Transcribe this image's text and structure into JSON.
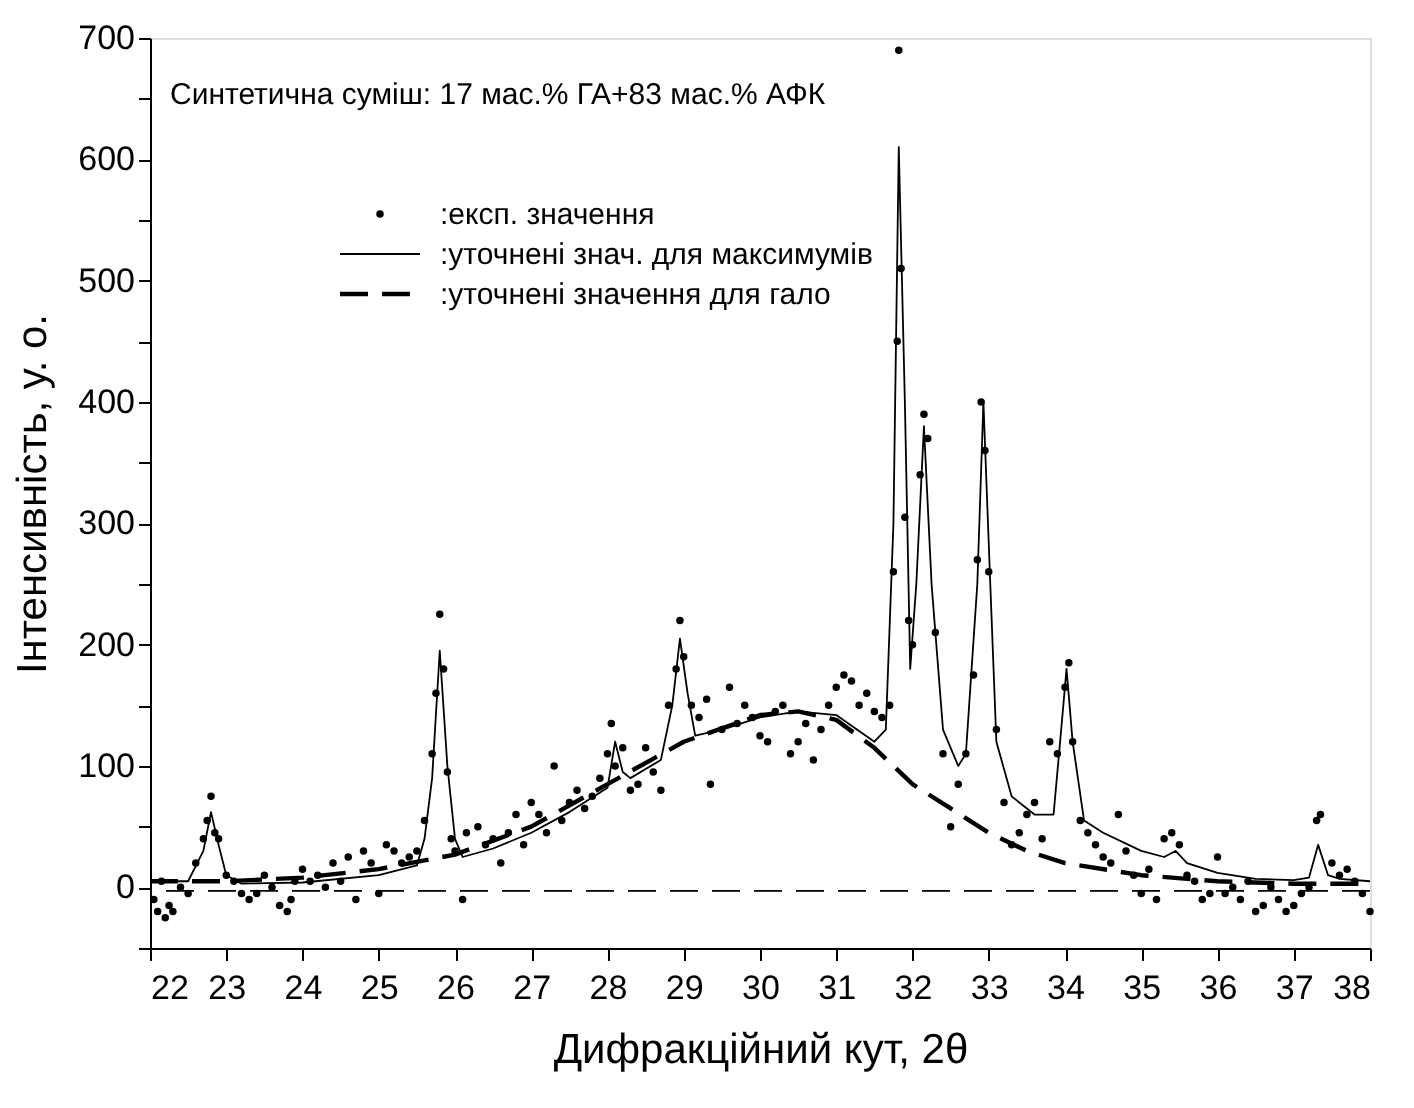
{
  "chart_data": {
    "type": "scatter",
    "xlabel": "Дифракційний кут, 2θ",
    "ylabel": "Інтенсивність, у. о.",
    "annotations": [
      "Синтетична суміш: 17 мас.% ГА+83 мас.% АФК"
    ],
    "xlim": [
      22,
      38
    ],
    "xticks": [
      22,
      23,
      24,
      25,
      26,
      27,
      28,
      29,
      30,
      31,
      32,
      33,
      34,
      35,
      36,
      37,
      38
    ],
    "ylim": [
      -50,
      700
    ],
    "yticks": [
      {
        "value": -50,
        "label": null
      },
      0,
      {
        "value": 50,
        "label": null
      },
      100,
      {
        "value": 150,
        "label": null
      },
      200,
      {
        "value": 250,
        "label": null
      },
      300,
      {
        "value": 350,
        "label": null
      },
      400,
      {
        "value": 450,
        "label": null
      },
      500,
      {
        "value": 550,
        "label": null
      },
      600,
      {
        "value": 650,
        "label": null
      },
      700
    ],
    "grid": false,
    "legend": "top left",
    "ref_lines": [
      {
        "axis": "y",
        "value": -3,
        "line_style": "dashed",
        "color": "#000000"
      }
    ],
    "series": [
      {
        "name": ":експ. значення",
        "type": "scatter",
        "marker": "circle",
        "color": "#000000",
        "x": [
          22.05,
          22.1,
          22.15,
          22.2,
          22.25,
          22.3,
          22.4,
          22.5,
          22.6,
          22.7,
          22.75,
          22.8,
          22.85,
          22.9,
          23.0,
          23.1,
          23.2,
          23.3,
          23.4,
          23.5,
          23.6,
          23.7,
          23.8,
          23.85,
          23.9,
          24.0,
          24.1,
          24.2,
          24.3,
          24.4,
          24.5,
          24.6,
          24.7,
          24.8,
          24.9,
          25.0,
          25.1,
          25.2,
          25.3,
          25.4,
          25.5,
          25.6,
          25.7,
          25.75,
          25.8,
          25.85,
          25.9,
          25.95,
          26.0,
          26.1,
          26.15,
          26.3,
          26.4,
          26.5,
          26.6,
          26.7,
          26.8,
          26.9,
          27.0,
          27.1,
          27.2,
          27.3,
          27.4,
          27.5,
          27.6,
          27.7,
          27.8,
          27.9,
          28.0,
          28.05,
          28.1,
          28.2,
          28.3,
          28.4,
          28.5,
          28.6,
          28.7,
          28.8,
          28.9,
          28.95,
          29.0,
          29.1,
          29.2,
          29.3,
          29.35,
          29.5,
          29.6,
          29.7,
          29.8,
          29.9,
          30.0,
          30.1,
          30.2,
          30.3,
          30.4,
          30.5,
          30.6,
          30.7,
          30.8,
          30.9,
          31.0,
          31.1,
          31.2,
          31.3,
          31.4,
          31.5,
          31.6,
          31.7,
          31.75,
          31.8,
          31.82,
          31.85,
          31.9,
          31.95,
          32.0,
          32.1,
          32.15,
          32.2,
          32.3,
          32.4,
          32.5,
          32.6,
          32.7,
          32.8,
          32.85,
          32.9,
          32.95,
          33.0,
          33.1,
          33.2,
          33.3,
          33.4,
          33.5,
          33.6,
          33.7,
          33.8,
          33.9,
          34.0,
          34.05,
          34.1,
          34.2,
          34.3,
          34.4,
          34.5,
          34.6,
          34.7,
          34.8,
          34.9,
          35.0,
          35.1,
          35.2,
          35.3,
          35.4,
          35.5,
          35.6,
          35.7,
          35.8,
          35.9,
          36.0,
          36.1,
          36.2,
          36.3,
          36.4,
          36.5,
          36.6,
          36.7,
          36.8,
          36.9,
          37.0,
          37.1,
          37.2,
          37.3,
          37.35,
          37.5,
          37.6,
          37.7,
          37.8,
          37.9,
          38.0
        ],
        "values": [
          -10,
          -20,
          5,
          -25,
          -15,
          -20,
          0,
          -5,
          20,
          40,
          55,
          75,
          45,
          40,
          10,
          5,
          -5,
          -10,
          -5,
          10,
          0,
          -15,
          -20,
          -10,
          5,
          15,
          5,
          10,
          0,
          20,
          5,
          25,
          -10,
          30,
          20,
          -5,
          35,
          30,
          20,
          25,
          30,
          55,
          110,
          160,
          225,
          180,
          95,
          40,
          30,
          -10,
          45,
          50,
          35,
          40,
          20,
          45,
          60,
          35,
          70,
          60,
          45,
          100,
          55,
          70,
          80,
          65,
          75,
          90,
          110,
          135,
          100,
          115,
          80,
          85,
          115,
          95,
          80,
          150,
          180,
          220,
          190,
          150,
          140,
          155,
          85,
          130,
          165,
          135,
          150,
          140,
          125,
          120,
          145,
          150,
          110,
          120,
          135,
          105,
          130,
          150,
          165,
          175,
          170,
          150,
          160,
          145,
          140,
          150,
          260,
          450,
          690,
          510,
          305,
          220,
          200,
          340,
          390,
          370,
          210,
          110,
          50,
          85,
          110,
          175,
          270,
          400,
          360,
          260,
          130,
          70,
          35,
          45,
          60,
          70,
          40,
          120,
          110,
          165,
          185,
          120,
          55,
          45,
          35,
          25,
          20,
          60,
          30,
          10,
          -5,
          15,
          -10,
          40,
          45,
          35,
          10,
          5,
          -10,
          -5,
          25,
          -5,
          0,
          -10,
          5,
          -20,
          -15,
          0,
          -10,
          -20,
          -15,
          -5,
          0,
          55,
          60,
          20,
          10,
          15,
          5,
          -5,
          -20
        ]
      },
      {
        "name": ":уточнені знач. для максимумів",
        "type": "line",
        "line_style": "solid",
        "color": "#000000",
        "x": [
          22,
          22.5,
          22.7,
          22.8,
          22.9,
          23.0,
          23.2,
          24,
          25,
          25.5,
          25.6,
          25.7,
          25.8,
          25.9,
          26.0,
          26.1,
          26.5,
          27,
          27.5,
          28,
          28.1,
          28.2,
          28.3,
          28.7,
          28.85,
          28.95,
          29.05,
          29.15,
          29.5,
          30,
          30.5,
          31,
          31.5,
          31.65,
          31.75,
          31.82,
          31.9,
          31.97,
          32.05,
          32.15,
          32.25,
          32.4,
          32.6,
          32.7,
          32.85,
          32.93,
          33.02,
          33.1,
          33.3,
          33.6,
          33.85,
          33.95,
          34.02,
          34.1,
          34.25,
          34.5,
          35,
          35.3,
          35.45,
          35.6,
          36,
          36.5,
          37,
          37.2,
          37.32,
          37.45,
          37.6,
          38
        ],
        "values": [
          5,
          5,
          30,
          62,
          35,
          10,
          3,
          4,
          10,
          18,
          40,
          90,
          195,
          100,
          40,
          25,
          32,
          45,
          62,
          82,
          120,
          95,
          90,
          105,
          150,
          205,
          160,
          125,
          130,
          140,
          145,
          142,
          120,
          130,
          300,
          610,
          400,
          180,
          250,
          380,
          250,
          130,
          100,
          110,
          250,
          400,
          250,
          120,
          75,
          60,
          60,
          130,
          180,
          120,
          55,
          45,
          30,
          25,
          30,
          20,
          12,
          7,
          6,
          8,
          35,
          10,
          7,
          5
        ]
      },
      {
        "name": ":уточнені значення для гало",
        "type": "line",
        "line_style": "dashed",
        "color": "#000000",
        "x": [
          22,
          23,
          24,
          25,
          26,
          27,
          28,
          29,
          30,
          30.5,
          31,
          31.5,
          32,
          32.5,
          33,
          33.5,
          34,
          35,
          36,
          37,
          38
        ],
        "values": [
          5,
          5,
          8,
          15,
          27,
          50,
          85,
          120,
          142,
          145,
          138,
          115,
          85,
          65,
          45,
          30,
          20,
          10,
          5,
          3,
          3
        ]
      }
    ]
  }
}
